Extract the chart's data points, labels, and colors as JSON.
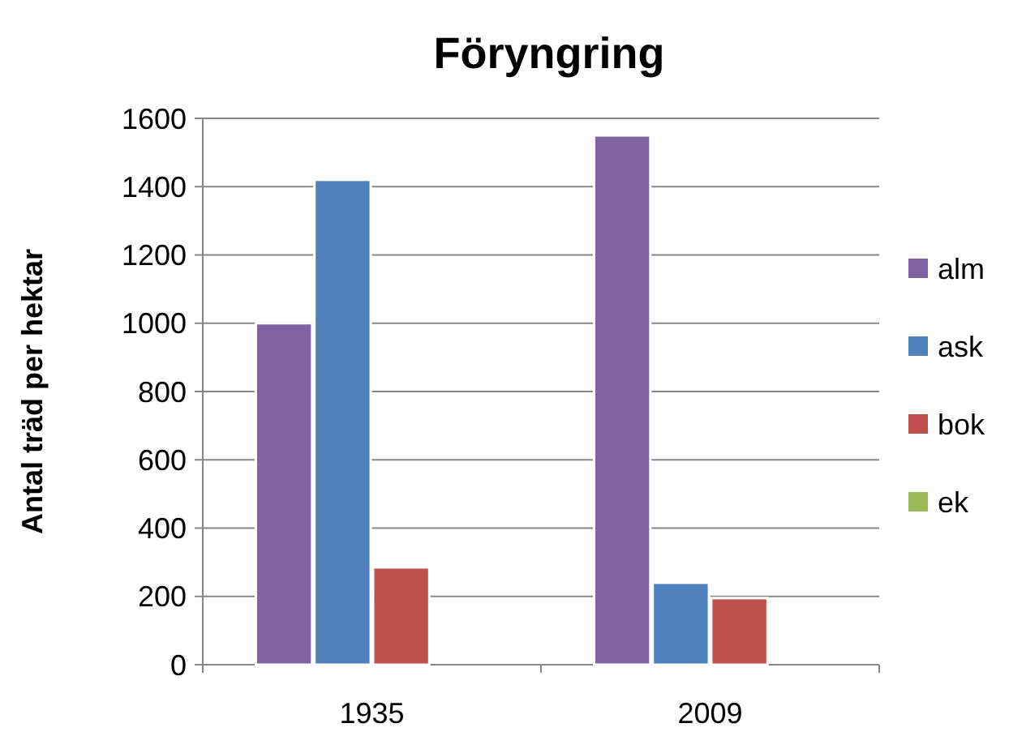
{
  "chart_data": {
    "type": "bar",
    "title": "Föryngring",
    "ylabel": "Antal träd per hektar",
    "categories": [
      "1935",
      "2009"
    ],
    "series": [
      {
        "name": "alm",
        "color": "#8064a2",
        "values": [
          1000,
          1550
        ]
      },
      {
        "name": "ask",
        "color": "#4f81bd",
        "values": [
          1420,
          240
        ]
      },
      {
        "name": "bok",
        "color": "#c0504d",
        "values": [
          285,
          195
        ]
      },
      {
        "name": "ek",
        "color": "#9bbb59",
        "values": [
          0,
          0
        ]
      }
    ],
    "ylim": [
      0,
      1600
    ],
    "yticks": [
      0,
      200,
      400,
      600,
      800,
      1000,
      1200,
      1400,
      1600
    ],
    "grid": "y",
    "legend": "right"
  }
}
